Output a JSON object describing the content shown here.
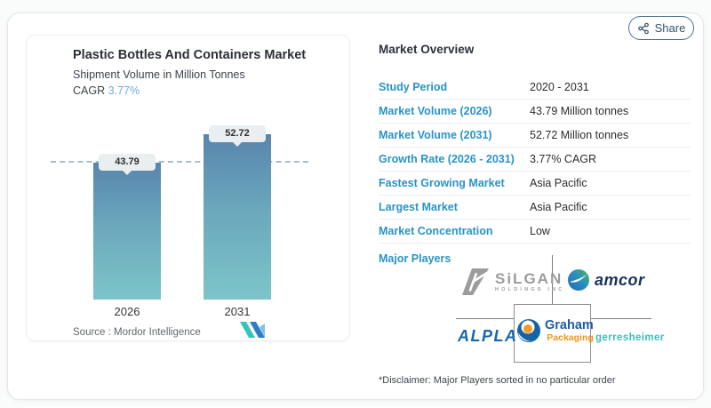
{
  "share": {
    "label": "Share"
  },
  "chart": {
    "title": "Plastic Bottles And Containers Market",
    "subtitle": "Shipment Volume in Million Tonnes",
    "cagr_label": "CAGR",
    "cagr_value": "3.77%",
    "source_label": "Source :  Mordor Intelligence"
  },
  "chart_data": {
    "type": "bar",
    "title": "Plastic Bottles And Containers Market",
    "subtitle": "Shipment Volume in Million Tonnes",
    "categories": [
      "2026",
      "2031"
    ],
    "values": [
      43.79,
      52.72
    ],
    "value_labels": [
      "43.79",
      "52.72"
    ],
    "ylabel": "Shipment Volume in Million Tonnes",
    "ylim": [
      0,
      55
    ],
    "reference_line": 43.79,
    "cagr": "3.77%",
    "bar_gradient_top": "#5885ac",
    "bar_gradient_bottom": "#7dc5c9",
    "grid": false,
    "legend": false
  },
  "overview": {
    "title": "Market Overview",
    "rows": [
      {
        "label": "Study Period",
        "value": "2020 - 2031"
      },
      {
        "label": "Market Volume (2026)",
        "value": "43.79 Million tonnes"
      },
      {
        "label": "Market Volume (2031)",
        "value": "52.72 Million tonnes"
      },
      {
        "label": "Growth Rate (2026 - 2031)",
        "value": "3.77% CAGR"
      },
      {
        "label": "Fastest Growing Market",
        "value": "Asia Pacific"
      },
      {
        "label": "Largest Market",
        "value": "Asia Pacific"
      },
      {
        "label": "Market Concentration",
        "value": "Low"
      }
    ],
    "major_players_label": "Major Players",
    "players": [
      "Silgan Holdings Inc",
      "Amcor",
      "ALPLA",
      "Graham Packaging",
      "Gerresheimer"
    ]
  },
  "logos": {
    "silgan_name": "SiLGAN",
    "silgan_sub": "HOLDINGS INC",
    "amcor": "amcor",
    "alpla": "ALPLA",
    "graham_line1": "Graham",
    "graham_line2": "Packaging",
    "gerresheimer": "gerresheimer"
  },
  "disclaimer": "*Disclaimer: Major Players sorted in no particular order",
  "colors": {
    "accent_blue": "#2a93c7",
    "cagr_blue": "#72abd7",
    "share_slate": "#33536b",
    "silgan_gray": "#9c9c9e",
    "amcor_navy": "#16325c",
    "amcor_green": "#50b848",
    "amcor_blue": "#1f6bb4",
    "alpla_blue": "#1767ad",
    "graham_blue": "#1b5ea6",
    "graham_orange": "#f0951c",
    "gerresheimer_teal": "#38bfb9",
    "mordor_teal": "#35c4c0",
    "mordor_blue": "#2f7dc9"
  }
}
